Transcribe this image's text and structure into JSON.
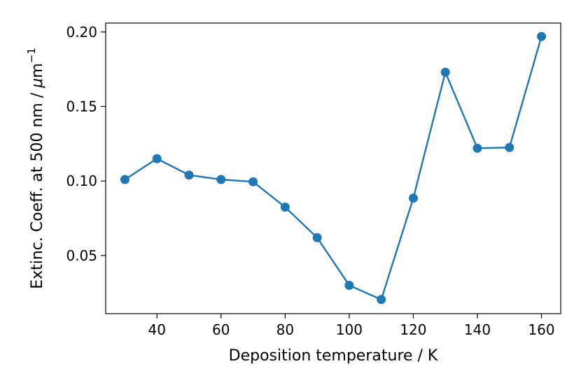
{
  "chart_data": {
    "type": "line",
    "title": "",
    "xlabel": "Deposition temperature / K",
    "ylabel_prefix": "Extinc. Coeff. at 500 nm / ",
    "ylabel_mu": "μ",
    "ylabel_unit": "m",
    "ylabel_exp": "−1",
    "xlim": [
      24,
      166
    ],
    "ylim": [
      0.011,
      0.206
    ],
    "xticks": [
      40,
      60,
      80,
      100,
      120,
      140,
      160
    ],
    "yticks": [
      0.05,
      0.1,
      0.15,
      0.2
    ],
    "xtick_labels": [
      "40",
      "60",
      "80",
      "100",
      "120",
      "140",
      "160"
    ],
    "ytick_labels": [
      "0.05",
      "0.10",
      "0.15",
      "0.20"
    ],
    "grid": false,
    "color": "#1f77b4",
    "series": [
      {
        "x": [
          30,
          40,
          50,
          60,
          70,
          80,
          90,
          100,
          110,
          120,
          130,
          140,
          150,
          160
        ],
        "values": [
          0.101,
          0.115,
          0.104,
          0.101,
          0.0995,
          0.0825,
          0.062,
          0.03,
          0.0205,
          0.0885,
          0.173,
          0.122,
          0.1225,
          0.197
        ]
      }
    ]
  }
}
